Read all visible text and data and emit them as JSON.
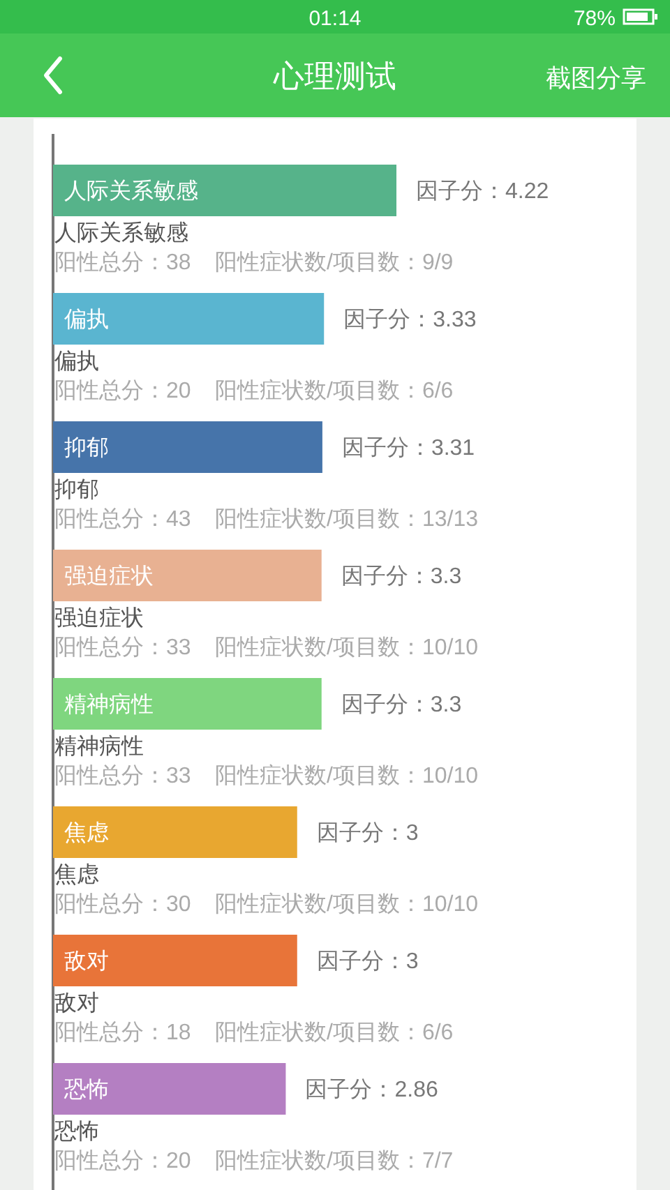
{
  "chart_data": {
    "type": "bar",
    "orientation": "horizontal",
    "title": "心理测试",
    "categories": [
      "人际关系敏感",
      "偏执",
      "抑郁",
      "强迫症状",
      "精神病性",
      "焦虑",
      "敌对",
      "恐怖"
    ],
    "values": [
      4.22,
      3.33,
      3.31,
      3.3,
      3.3,
      3,
      3,
      2.86
    ],
    "colors": [
      "#56b38a",
      "#5ab5d0",
      "#4674aa",
      "#e8b192",
      "#7fd67f",
      "#e8a730",
      "#e87439",
      "#b47fc2"
    ],
    "value_labels": [
      "因子分：4.22",
      "因子分：3.33",
      "因子分：3.31",
      "因子分：3.3",
      "因子分：3.3",
      "因子分：3",
      "因子分：3",
      "因子分：2.86"
    ],
    "annotations": [
      "01:14",
      "78%",
      "截图分享",
      "阳性总分：38",
      "阳性症状数/项目数：9/9",
      "阳性总分：20",
      "阳性症状数/项目数：6/6",
      "阳性总分：43",
      "阳性症状数/项目数：13/13",
      "阳性总分：33",
      "阳性症状数/项目数：10/10",
      "阳性总分：33",
      "阳性症状数/项目数：10/10",
      "阳性总分：30",
      "阳性症状数/项目数：10/10",
      "阳性总分：18",
      "阳性症状数/项目数：6/6",
      "阳性总分：20",
      "阳性症状数/项目数：7/7"
    ]
  }
}
